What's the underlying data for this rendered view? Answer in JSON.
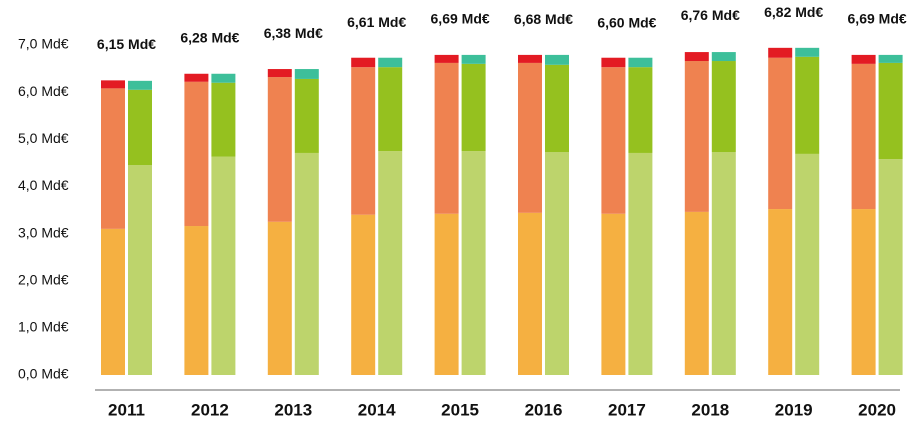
{
  "chart_data": {
    "type": "bar",
    "categories": [
      "2011",
      "2012",
      "2013",
      "2014",
      "2015",
      "2016",
      "2017",
      "2018",
      "2019",
      "2020"
    ],
    "stacks": [
      [
        {
          "color": "#f5b041",
          "values": [
            3.1,
            3.16,
            3.25,
            3.4,
            3.42,
            3.44,
            3.42,
            3.46,
            3.52,
            3.52
          ]
        },
        {
          "color": "#ef8250",
          "values": [
            2.98,
            3.06,
            3.07,
            3.13,
            3.2,
            3.18,
            3.11,
            3.2,
            3.21,
            3.08
          ]
        },
        {
          "color": "#e31b23",
          "values": [
            0.17,
            0.17,
            0.17,
            0.2,
            0.17,
            0.17,
            0.2,
            0.19,
            0.21,
            0.19
          ]
        }
      ],
      [
        {
          "color": "#bdd46c",
          "values": [
            4.45,
            4.63,
            4.71,
            4.75,
            4.75,
            4.73,
            4.71,
            4.73,
            4.69,
            4.58
          ]
        },
        {
          "color": "#95c11f",
          "values": [
            1.6,
            1.57,
            1.57,
            1.78,
            1.85,
            1.85,
            1.82,
            1.93,
            2.06,
            2.04
          ]
        },
        {
          "color": "#3dbf9a",
          "values": [
            0.19,
            0.19,
            0.21,
            0.2,
            0.19,
            0.21,
            0.2,
            0.19,
            0.19,
            0.17
          ]
        }
      ]
    ],
    "totals": [
      6.15,
      6.28,
      6.38,
      6.61,
      6.69,
      6.68,
      6.6,
      6.76,
      6.82,
      6.69
    ],
    "value_labels": [
      "6,15 Md€",
      "6,28 Md€",
      "6,38 Md€",
      "6,61 Md€",
      "6,69 Md€",
      "6,68 Md€",
      "6,60 Md€",
      "6,76 Md€",
      "6,82 Md€",
      "6,69 Md€"
    ],
    "ylim": [
      0,
      7
    ],
    "yticks": [
      {
        "value": 0,
        "label": "0,0 Md€"
      },
      {
        "value": 1,
        "label": "1,0 Md€"
      },
      {
        "value": 2,
        "label": "2,0 Md€"
      },
      {
        "value": 3,
        "label": "3,0 Md€"
      },
      {
        "value": 4,
        "label": "4,0 Md€"
      },
      {
        "value": 5,
        "label": "5,0 Md€"
      },
      {
        "value": 6,
        "label": "6,0 Md€"
      },
      {
        "value": 7,
        "label": "7,0 Md€"
      }
    ],
    "grid": false
  }
}
